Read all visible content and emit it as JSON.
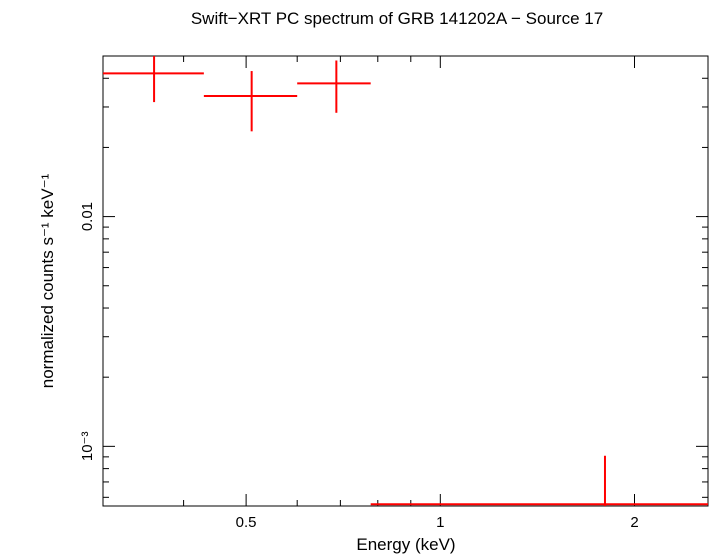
{
  "chart_data": {
    "type": "scatter",
    "title": "Swift−XRT PC spectrum of GRB 141202A − Source 17",
    "xlabel": "Energy (keV)",
    "ylabel": "normalized counts s⁻¹ keV⁻¹",
    "x_scale": "log",
    "y_scale": "log",
    "xlim": [
      0.3,
      2.6
    ],
    "ylim": [
      0.00055,
      0.05
    ],
    "x_ticks": [
      {
        "value": 0.5,
        "label": "0.5"
      },
      {
        "value": 1,
        "label": "1"
      },
      {
        "value": 2,
        "label": "2"
      }
    ],
    "y_ticks": [
      {
        "value": 0.01,
        "label": "0.01"
      },
      {
        "value": 0.001,
        "label": "10⁻³"
      }
    ],
    "series": [
      {
        "color": "#ff0000",
        "points": [
          {
            "x": 0.36,
            "xlo": 0.3,
            "xhi": 0.43,
            "y": 0.042,
            "ylo": 0.0315,
            "yhi": 0.05
          },
          {
            "x": 0.51,
            "xlo": 0.43,
            "xhi": 0.6,
            "y": 0.0335,
            "ylo": 0.0235,
            "yhi": 0.043
          },
          {
            "x": 0.69,
            "xlo": 0.6,
            "xhi": 0.78,
            "y": 0.038,
            "ylo": 0.0283,
            "yhi": 0.0478
          },
          {
            "x": 1.8,
            "xlo": 0.78,
            "xhi": 2.6,
            "y": 0.00056,
            "ylo": 0.00055,
            "yhi": 0.00091
          }
        ]
      }
    ]
  }
}
